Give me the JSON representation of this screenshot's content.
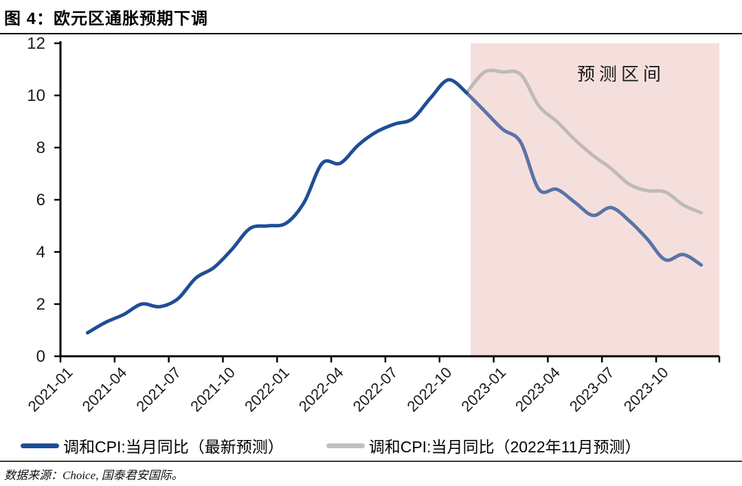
{
  "title": "图 4：欧元区通胀预期下调",
  "source_note": "数据来源：Choice, 国泰君安国际。",
  "colors": {
    "actual_blue": "#1f4e96",
    "forecast_blue": "#5b73a6",
    "forecast_gray": "#bfbab7",
    "legend_gray": "#c2c0be",
    "region_pink": "#f4dfdd",
    "axis": "#000000",
    "text": "#1a1a1a"
  },
  "legend": [
    {
      "label": "调和CPI:当月同比（最新预测）",
      "color": "#1f4e96"
    },
    {
      "label": "调和CPI:当月同比（2022年11月预测）",
      "color": "#c2c0be"
    }
  ],
  "chart_data": {
    "type": "line",
    "x": [
      "2021-01",
      "2021-02",
      "2021-03",
      "2021-04",
      "2021-05",
      "2021-06",
      "2021-07",
      "2021-08",
      "2021-09",
      "2021-10",
      "2021-11",
      "2021-12",
      "2022-01",
      "2022-02",
      "2022-03",
      "2022-04",
      "2022-05",
      "2022-06",
      "2022-07",
      "2022-08",
      "2022-09",
      "2022-10",
      "2022-11",
      "2022-12",
      "2023-01",
      "2023-02",
      "2023-03",
      "2023-04",
      "2023-05",
      "2023-06",
      "2023-07",
      "2023-08",
      "2023-09",
      "2023-10",
      "2023-11",
      "2023-12"
    ],
    "xtick_labels": [
      "2021-01",
      "2021-04",
      "2021-07",
      "2021-10",
      "2022-01",
      "2022-04",
      "2022-07",
      "2022-10",
      "2023-01",
      "2023-04",
      "2023-07",
      "2023-10"
    ],
    "yticks": [
      0,
      2,
      4,
      6,
      8,
      10,
      12
    ],
    "ylim": [
      0,
      12
    ],
    "grid": false,
    "legend_position": "bottom",
    "forecast_region": {
      "label": "预测区间",
      "start": "2022-11",
      "fill": "#f4dfdd"
    },
    "series": [
      {
        "name": "调和CPI:当月同比（最新预测）",
        "color": "#1f4e96",
        "forecast_color": "#5b73a6",
        "forecast_start": "2022-11",
        "values": [
          null,
          0.9,
          1.3,
          1.6,
          2.0,
          1.9,
          2.2,
          3.0,
          3.4,
          4.1,
          4.9,
          5.0,
          5.1,
          5.9,
          7.4,
          7.4,
          8.1,
          8.6,
          8.9,
          9.1,
          9.9,
          10.6,
          10.1,
          9.4,
          8.7,
          8.2,
          6.4,
          6.4,
          5.9,
          5.4,
          5.7,
          5.2,
          4.5,
          3.7,
          3.9,
          3.5
        ]
      },
      {
        "name": "调和CPI:当月同比（2022年11月预测）",
        "color": "#bfbab7",
        "forecast_start": "2022-11",
        "values": [
          null,
          null,
          null,
          null,
          null,
          null,
          null,
          null,
          null,
          null,
          null,
          null,
          null,
          null,
          null,
          null,
          null,
          null,
          null,
          null,
          null,
          null,
          10.1,
          10.9,
          10.9,
          10.8,
          9.6,
          9.0,
          8.3,
          7.7,
          7.2,
          6.6,
          6.35,
          6.3,
          5.8,
          5.5
        ]
      }
    ]
  }
}
